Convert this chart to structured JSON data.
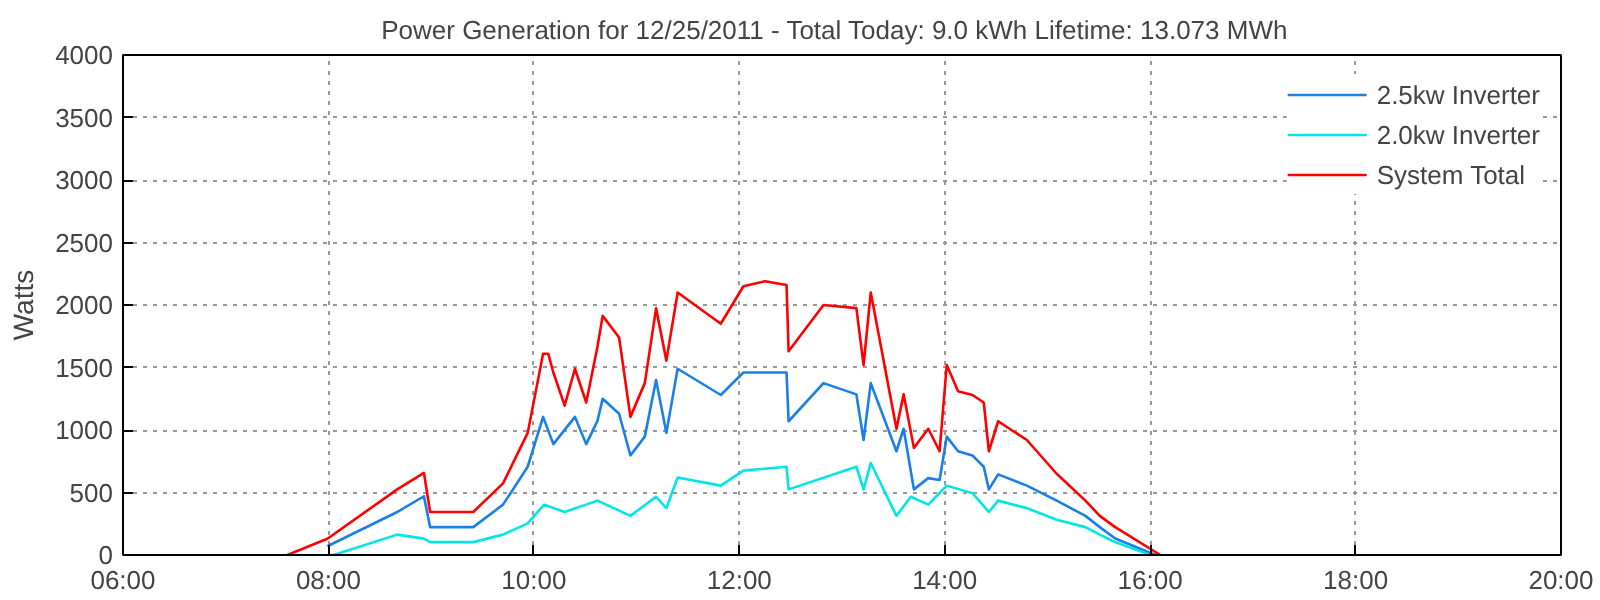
{
  "chart_data": {
    "type": "line",
    "title": "Power Generation for 12/25/2011 - Total Today: 9.0 kWh   Lifetime: 13.073 MWh",
    "ylabel": "Watts",
    "xlim": [
      6,
      20
    ],
    "ylim": [
      0,
      4000
    ],
    "xticks": [
      {
        "value": 6,
        "label": "06:00"
      },
      {
        "value": 8,
        "label": "08:00"
      },
      {
        "value": 10,
        "label": "10:00"
      },
      {
        "value": 12,
        "label": "12:00"
      },
      {
        "value": 14,
        "label": "14:00"
      },
      {
        "value": 16,
        "label": "16:00"
      },
      {
        "value": 18,
        "label": "18:00"
      },
      {
        "value": 20,
        "label": "20:00"
      }
    ],
    "yticks": [
      0,
      500,
      1000,
      1500,
      2000,
      2500,
      3000,
      3500,
      4000
    ],
    "grid": true,
    "legend": "top right",
    "line_style": "solid",
    "series": [
      {
        "name": "2.5kw Inverter",
        "color": "#1a7fe8",
        "x": [
          7.99,
          8.67,
          8.93,
          8.99,
          9.41,
          9.7,
          9.94,
          10.09,
          10.19,
          10.4,
          10.51,
          10.62,
          10.67,
          10.83,
          10.94,
          11.08,
          11.19,
          11.29,
          11.4,
          11.82,
          12.04,
          12.25,
          12.46,
          12.48,
          12.82,
          13.14,
          13.21,
          13.28,
          13.42,
          13.53,
          13.6,
          13.7,
          13.84,
          13.95,
          14.02,
          14.13,
          14.27,
          14.38,
          14.43,
          14.52,
          14.8,
          15.09,
          15.37,
          15.51,
          15.66,
          16.05
        ],
        "values": [
          70,
          344,
          470,
          223,
          223,
          403,
          706,
          1105,
          887,
          1105,
          887,
          1075,
          1250,
          1130,
          796,
          947,
          1400,
          977,
          1490,
          1280,
          1460,
          1460,
          1460,
          1070,
          1375,
          1285,
          920,
          1375,
          1070,
          830,
          1010,
          525,
          615,
          600,
          947,
          830,
          796,
          706,
          525,
          645,
          555,
          435,
          313,
          223,
          132,
          0
        ]
      },
      {
        "name": "2.0kw Inverter",
        "color": "#00e5e5",
        "x": [
          8.05,
          8.67,
          8.93,
          8.99,
          9.41,
          9.7,
          9.94,
          10.1,
          10.3,
          10.62,
          10.94,
          11.19,
          11.29,
          11.4,
          11.82,
          12.04,
          12.46,
          12.48,
          13.14,
          13.21,
          13.28,
          13.53,
          13.67,
          13.84,
          14.02,
          14.27,
          14.43,
          14.52,
          14.8,
          15.09,
          15.37,
          15.51,
          15.66,
          16.0
        ],
        "values": [
          0,
          163,
          131,
          103,
          103,
          163,
          253,
          403,
          344,
          435,
          313,
          466,
          375,
          620,
          555,
          675,
          706,
          525,
          706,
          525,
          736,
          313,
          466,
          403,
          555,
          495,
          344,
          435,
          375,
          282,
          223,
          163,
          103,
          0
        ]
      },
      {
        "name": "System Total",
        "color": "#ff0000",
        "x": [
          7.6,
          7.99,
          8.67,
          8.93,
          8.99,
          9.41,
          9.7,
          9.94,
          10.09,
          10.14,
          10.19,
          10.3,
          10.4,
          10.51,
          10.62,
          10.67,
          10.83,
          10.94,
          11.08,
          11.19,
          11.29,
          11.4,
          11.82,
          12.04,
          12.25,
          12.46,
          12.48,
          12.82,
          13.14,
          13.21,
          13.28,
          13.42,
          13.53,
          13.6,
          13.7,
          13.84,
          13.95,
          14.02,
          14.13,
          14.27,
          14.38,
          14.43,
          14.52,
          14.8,
          15.09,
          15.37,
          15.51,
          15.66,
          16.1
        ],
        "values": [
          0,
          130,
          525,
          657,
          344,
          344,
          573,
          977,
          1610,
          1610,
          1460,
          1195,
          1490,
          1220,
          1670,
          1913,
          1740,
          1105,
          1375,
          1973,
          1555,
          2100,
          1850,
          2150,
          2190,
          2160,
          1630,
          2000,
          1975,
          1520,
          2100,
          1490,
          1010,
          1285,
          857,
          1010,
          830,
          1520,
          1310,
          1280,
          1220,
          830,
          1070,
          920,
          650,
          435,
          313,
          223,
          0
        ]
      }
    ]
  }
}
